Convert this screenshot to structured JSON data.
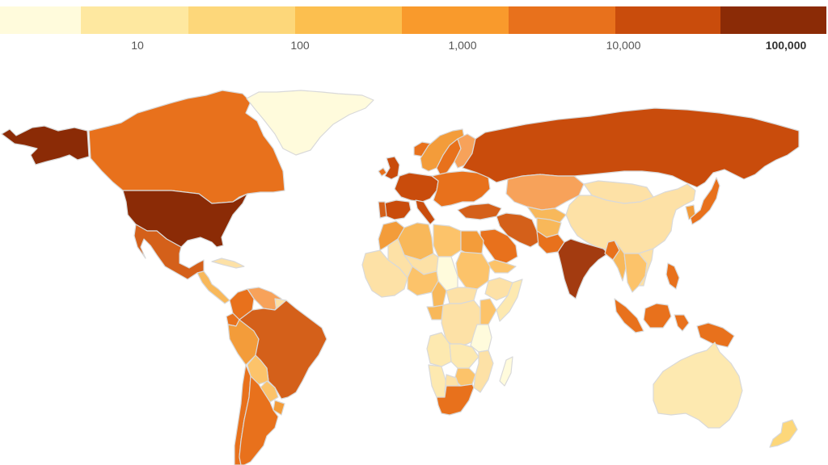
{
  "legend": {
    "bins": [
      {
        "color": "#fffbdc"
      },
      {
        "color": "#fee8a0",
        "label": "10"
      },
      {
        "color": "#fdd77a",
        "label": "100"
      },
      {
        "color": "#fcbf4f",
        "label": "1,000"
      },
      {
        "color": "#f99a2c",
        "label": "10,000"
      },
      {
        "color": "#e8711c",
        "label": "100,000"
      },
      {
        "color": "#c94c0c"
      },
      {
        "color": "#8b2b06"
      }
    ]
  },
  "map": {
    "countries": [
      {
        "name": "Alaska",
        "color": "#8b2b06"
      },
      {
        "name": "Canada",
        "color": "#e8711c"
      },
      {
        "name": "Greenland",
        "color": "#fffbdc"
      },
      {
        "name": "United States",
        "color": "#8b2b06"
      },
      {
        "name": "Mexico",
        "color": "#d4601a"
      },
      {
        "name": "Central America",
        "color": "#f8b85a"
      },
      {
        "name": "Cuba",
        "color": "#fde1a6"
      },
      {
        "name": "Colombia",
        "color": "#e8711c"
      },
      {
        "name": "Venezuela",
        "color": "#f7a25a"
      },
      {
        "name": "Guyana",
        "color": "#fde1a6"
      },
      {
        "name": "Ecuador",
        "color": "#e8711c"
      },
      {
        "name": "Peru",
        "color": "#f39c3a"
      },
      {
        "name": "Brazil",
        "color": "#d4601a"
      },
      {
        "name": "Bolivia",
        "color": "#fcc36a"
      },
      {
        "name": "Paraguay",
        "color": "#fcc36a"
      },
      {
        "name": "Uruguay",
        "color": "#f39c3a"
      },
      {
        "name": "Chile",
        "color": "#e8711c"
      },
      {
        "name": "Argentina",
        "color": "#e8711c"
      },
      {
        "name": "Iceland",
        "color": "#e8711c"
      },
      {
        "name": "Ireland",
        "color": "#e8711c"
      },
      {
        "name": "United Kingdom",
        "color": "#c94c0c"
      },
      {
        "name": "Norway",
        "color": "#f39c3a"
      },
      {
        "name": "Sweden",
        "color": "#e8711c"
      },
      {
        "name": "Finland",
        "color": "#f7a25a"
      },
      {
        "name": "Western Europe",
        "color": "#c94c0c"
      },
      {
        "name": "Spain",
        "color": "#c94c0c"
      },
      {
        "name": "Portugal",
        "color": "#d4601a"
      },
      {
        "name": "Italy",
        "color": "#c94c0c"
      },
      {
        "name": "Eastern Europe",
        "color": "#e8711c"
      },
      {
        "name": "Turkey",
        "color": "#d4601a"
      },
      {
        "name": "Russia",
        "color": "#c94c0c"
      },
      {
        "name": "Kazakhstan",
        "color": "#f7a25a"
      },
      {
        "name": "Central Asia",
        "color": "#f8b85a"
      },
      {
        "name": "Iran",
        "color": "#d4601a"
      },
      {
        "name": "Afghanistan",
        "color": "#f8b85a"
      },
      {
        "name": "Pakistan",
        "color": "#e8711c"
      },
      {
        "name": "Saudi Arabia",
        "color": "#e8711c"
      },
      {
        "name": "Yemen",
        "color": "#fcc36a"
      },
      {
        "name": "Mongolia",
        "color": "#fde1a6"
      },
      {
        "name": "China",
        "color": "#fde1a6"
      },
      {
        "name": "India",
        "color": "#a33b10"
      },
      {
        "name": "Bangladesh",
        "color": "#e8711c"
      },
      {
        "name": "Myanmar",
        "color": "#f8b85a"
      },
      {
        "name": "Southeast Asia",
        "color": "#fcc36a"
      },
      {
        "name": "Vietnam",
        "color": "#fde1a6"
      },
      {
        "name": "Korea",
        "color": "#f39c3a"
      },
      {
        "name": "Japan",
        "color": "#e8711c"
      },
      {
        "name": "Philippines",
        "color": "#e8711c"
      },
      {
        "name": "Sumatra",
        "color": "#e8711c"
      },
      {
        "name": "Borneo",
        "color": "#e8711c"
      },
      {
        "name": "Sulawesi",
        "color": "#e8711c"
      },
      {
        "name": "New Guinea",
        "color": "#e8711c"
      },
      {
        "name": "Australia",
        "color": "#fde9b0"
      },
      {
        "name": "New Zealand",
        "color": "#fdd77a"
      },
      {
        "name": "Morocco",
        "color": "#f39c3a"
      },
      {
        "name": "Algeria",
        "color": "#f8b85a"
      },
      {
        "name": "Libya",
        "color": "#fcc36a"
      },
      {
        "name": "Egypt",
        "color": "#f39c3a"
      },
      {
        "name": "Sudan",
        "color": "#fcc36a"
      },
      {
        "name": "Ethiopia",
        "color": "#fde1a6"
      },
      {
        "name": "Somalia",
        "color": "#fde9b0"
      },
      {
        "name": "West Africa",
        "color": "#fde1a6"
      },
      {
        "name": "Mali",
        "color": "#fde1a6"
      },
      {
        "name": "Niger",
        "color": "#fde1a6"
      },
      {
        "name": "Chad",
        "color": "#fffbdc"
      },
      {
        "name": "Nigeria",
        "color": "#fcc36a"
      },
      {
        "name": "Cameroon",
        "color": "#f8b85a"
      },
      {
        "name": "Central African Republic",
        "color": "#fde1a6"
      },
      {
        "name": "DR Congo",
        "color": "#fde1a6"
      },
      {
        "name": "Gabon",
        "color": "#f8b85a"
      },
      {
        "name": "Kenya",
        "color": "#fcc36a"
      },
      {
        "name": "Tanzania",
        "color": "#fffbdc"
      },
      {
        "name": "Angola",
        "color": "#fde9b0"
      },
      {
        "name": "Zambia",
        "color": "#fde9b0"
      },
      {
        "name": "Mozambique",
        "color": "#fde1a6"
      },
      {
        "name": "Zimbabwe",
        "color": "#fcc36a"
      },
      {
        "name": "Namibia",
        "color": "#fde9b0"
      },
      {
        "name": "Botswana",
        "color": "#fde1a6"
      },
      {
        "name": "South Africa",
        "color": "#e8711c"
      },
      {
        "name": "Madagascar",
        "color": "#fffbdc"
      }
    ]
  }
}
